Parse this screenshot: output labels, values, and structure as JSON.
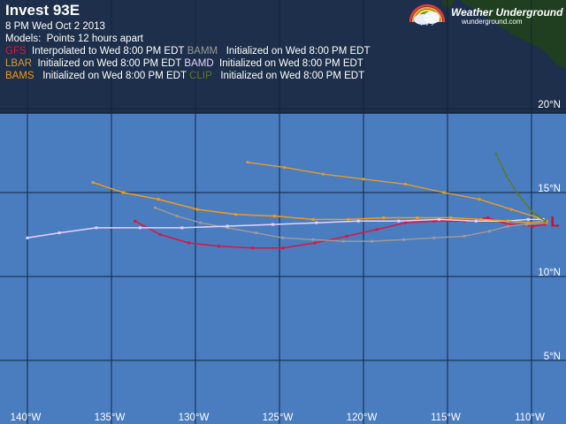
{
  "header": {
    "title": "Invest 93E",
    "timestamp": "8 PM   Wed Oct 2 2013",
    "models_label": "Models:",
    "models_note": "Points 12 hours apart"
  },
  "brand": {
    "name": "Weather Underground",
    "url": "wunderground.com"
  },
  "models": [
    {
      "name": "GFS",
      "color": "#e0143c",
      "desc": "Interpolated to Wed 8:00 PM EDT"
    },
    {
      "name": "BAMM",
      "color": "#9a9a9a",
      "desc": "Initialized on Wed 8:00 PM EDT"
    },
    {
      "name": "LBAR",
      "color": "#d99a33",
      "desc": "Initialized on Wed 8:00 PM EDT"
    },
    {
      "name": "BAMD",
      "color": "#e8d2ff",
      "desc": "Initialized on Wed 8:00 PM EDT"
    },
    {
      "name": "BAMS",
      "color": "#f59a12",
      "desc": "Initialized on Wed 8:00 PM EDT"
    },
    {
      "name": "CLIP",
      "color": "#5e7a28",
      "desc": "Initialized on Wed 8:00 PM EDT"
    }
  ],
  "axes": {
    "lon_labels": [
      "140°W",
      "135°W",
      "130°W",
      "125°W",
      "120°W",
      "115°W",
      "110°W"
    ],
    "lat_labels": [
      "20°N",
      "15°N",
      "10°N",
      "5°N"
    ]
  },
  "storm": {
    "symbol": "L",
    "color": "#c8102e",
    "lon": -108.6,
    "lat": 13.3
  },
  "map": {
    "ocean_color": "#4a7cc0",
    "land_color": "#1f3f20",
    "top_band_color": "#1d2f4a",
    "grid_color": "#0f2440"
  },
  "tracks": [
    {
      "model": "GFS",
      "color": "#e0143c",
      "points": [
        [
          -133.6,
          13.3
        ],
        [
          -132.1,
          12.5
        ],
        [
          -130.4,
          12.0
        ],
        [
          -128.6,
          11.8
        ],
        [
          -126.6,
          11.7
        ],
        [
          -124.8,
          11.7
        ],
        [
          -122.9,
          12.0
        ],
        [
          -121.0,
          12.4
        ],
        [
          -119.2,
          12.8
        ],
        [
          -117.5,
          13.2
        ],
        [
          -115.8,
          13.3
        ],
        [
          -114.0,
          13.3
        ],
        [
          -112.6,
          13.5
        ],
        [
          -111.4,
          13.1
        ],
        [
          -109.9,
          13.0
        ],
        [
          -109.2,
          13.1
        ]
      ]
    },
    {
      "model": "BAMM",
      "color": "#9a9a9a",
      "points": [
        [
          -132.4,
          14.1
        ],
        [
          -131.1,
          13.6
        ],
        [
          -129.7,
          13.2
        ],
        [
          -128.1,
          12.9
        ],
        [
          -126.4,
          12.6
        ],
        [
          -124.8,
          12.3
        ],
        [
          -123.0,
          12.2
        ],
        [
          -121.2,
          12.1
        ],
        [
          -119.5,
          12.1
        ],
        [
          -117.6,
          12.2
        ],
        [
          -115.8,
          12.3
        ],
        [
          -114.0,
          12.4
        ],
        [
          -112.5,
          12.7
        ],
        [
          -111.4,
          13.0
        ],
        [
          -110.3,
          13.1
        ],
        [
          -109.1,
          13.2
        ]
      ]
    },
    {
      "model": "LBAR",
      "color": "#d99a33",
      "points": [
        [
          -126.9,
          16.8
        ],
        [
          -124.7,
          16.5
        ],
        [
          -122.4,
          16.1
        ],
        [
          -120.0,
          15.8
        ],
        [
          -117.5,
          15.5
        ],
        [
          -115.2,
          15.0
        ],
        [
          -113.1,
          14.6
        ],
        [
          -111.2,
          14.0
        ],
        [
          -109.6,
          13.5
        ]
      ]
    },
    {
      "model": "BAMD",
      "color": "#e8d2ff",
      "points": [
        [
          -140.0,
          12.3
        ],
        [
          -138.1,
          12.6
        ],
        [
          -135.9,
          12.9
        ],
        [
          -133.3,
          12.9
        ],
        [
          -130.8,
          12.9
        ],
        [
          -128.1,
          13.0
        ],
        [
          -125.4,
          13.1
        ],
        [
          -122.8,
          13.2
        ],
        [
          -120.3,
          13.3
        ],
        [
          -117.9,
          13.3
        ],
        [
          -115.5,
          13.4
        ],
        [
          -113.3,
          13.3
        ],
        [
          -111.4,
          13.3
        ],
        [
          -110.2,
          13.4
        ],
        [
          -109.3,
          13.4
        ]
      ]
    },
    {
      "model": "BAMS",
      "color": "#f59a12",
      "points": [
        [
          -136.1,
          15.6
        ],
        [
          -134.3,
          15.0
        ],
        [
          -132.2,
          14.6
        ],
        [
          -129.9,
          14.0
        ],
        [
          -127.6,
          13.7
        ],
        [
          -125.3,
          13.6
        ],
        [
          -123.0,
          13.4
        ],
        [
          -120.9,
          13.4
        ],
        [
          -118.8,
          13.5
        ],
        [
          -116.8,
          13.5
        ],
        [
          -114.8,
          13.5
        ],
        [
          -113.0,
          13.4
        ],
        [
          -111.4,
          13.3
        ],
        [
          -110.2,
          13.2
        ],
        [
          -109.1,
          13.3
        ]
      ]
    },
    {
      "model": "CLIP",
      "color": "#5e7a28",
      "points": [
        [
          -112.1,
          17.3
        ],
        [
          -111.5,
          16.0
        ],
        [
          -110.8,
          14.9
        ],
        [
          -110.0,
          13.9
        ],
        [
          -109.2,
          13.3
        ]
      ]
    }
  ]
}
